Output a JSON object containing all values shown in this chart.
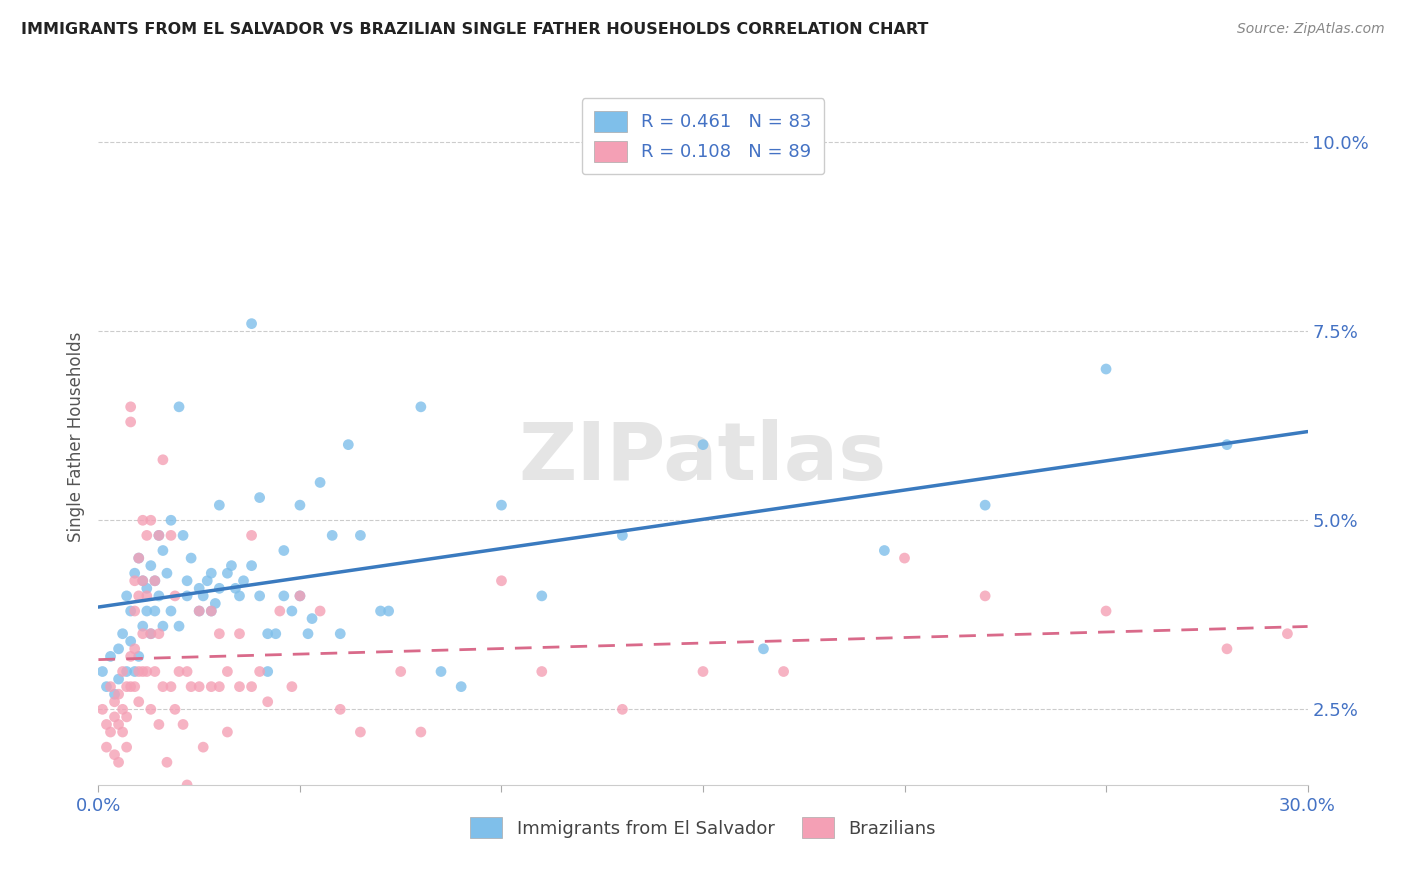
{
  "title": "IMMIGRANTS FROM EL SALVADOR VS BRAZILIAN SINGLE FATHER HOUSEHOLDS CORRELATION CHART",
  "source": "Source: ZipAtlas.com",
  "ylabel": "Single Father Households",
  "x_min": 0.0,
  "x_max": 0.3,
  "y_min": 0.015,
  "y_max": 0.107,
  "x_ticks": [
    0.0,
    0.05,
    0.1,
    0.15,
    0.2,
    0.25,
    0.3
  ],
  "y_ticks": [
    0.025,
    0.05,
    0.075,
    0.1
  ],
  "y_tick_labels": [
    "2.5%",
    "5.0%",
    "7.5%",
    "10.0%"
  ],
  "blue_color": "#7fbfea",
  "pink_color": "#f4a0b5",
  "blue_line_color": "#3a7abf",
  "pink_line_color": "#d96a8a",
  "legend_blue_r": "0.461",
  "legend_blue_n": "83",
  "legend_pink_r": "0.108",
  "legend_pink_n": "89",
  "watermark": "ZIPatlas",
  "legend_label_blue": "Immigrants from El Salvador",
  "legend_label_pink": "Brazilians",
  "blue_scatter": [
    [
      0.001,
      0.03
    ],
    [
      0.002,
      0.028
    ],
    [
      0.003,
      0.032
    ],
    [
      0.004,
      0.027
    ],
    [
      0.005,
      0.033
    ],
    [
      0.005,
      0.029
    ],
    [
      0.006,
      0.035
    ],
    [
      0.007,
      0.04
    ],
    [
      0.007,
      0.03
    ],
    [
      0.008,
      0.038
    ],
    [
      0.008,
      0.034
    ],
    [
      0.009,
      0.043
    ],
    [
      0.009,
      0.03
    ],
    [
      0.01,
      0.045
    ],
    [
      0.01,
      0.032
    ],
    [
      0.011,
      0.042
    ],
    [
      0.011,
      0.036
    ],
    [
      0.012,
      0.041
    ],
    [
      0.012,
      0.038
    ],
    [
      0.013,
      0.044
    ],
    [
      0.013,
      0.035
    ],
    [
      0.014,
      0.042
    ],
    [
      0.014,
      0.038
    ],
    [
      0.015,
      0.048
    ],
    [
      0.015,
      0.04
    ],
    [
      0.016,
      0.046
    ],
    [
      0.016,
      0.036
    ],
    [
      0.017,
      0.043
    ],
    [
      0.018,
      0.05
    ],
    [
      0.018,
      0.038
    ],
    [
      0.02,
      0.065
    ],
    [
      0.02,
      0.036
    ],
    [
      0.021,
      0.048
    ],
    [
      0.022,
      0.042
    ],
    [
      0.022,
      0.04
    ],
    [
      0.023,
      0.045
    ],
    [
      0.025,
      0.041
    ],
    [
      0.025,
      0.038
    ],
    [
      0.026,
      0.04
    ],
    [
      0.027,
      0.042
    ],
    [
      0.028,
      0.043
    ],
    [
      0.028,
      0.038
    ],
    [
      0.029,
      0.039
    ],
    [
      0.03,
      0.052
    ],
    [
      0.03,
      0.041
    ],
    [
      0.032,
      0.043
    ],
    [
      0.033,
      0.044
    ],
    [
      0.034,
      0.041
    ],
    [
      0.035,
      0.04
    ],
    [
      0.036,
      0.042
    ],
    [
      0.038,
      0.076
    ],
    [
      0.038,
      0.044
    ],
    [
      0.04,
      0.053
    ],
    [
      0.04,
      0.04
    ],
    [
      0.042,
      0.035
    ],
    [
      0.042,
      0.03
    ],
    [
      0.044,
      0.035
    ],
    [
      0.046,
      0.046
    ],
    [
      0.046,
      0.04
    ],
    [
      0.048,
      0.038
    ],
    [
      0.05,
      0.052
    ],
    [
      0.05,
      0.04
    ],
    [
      0.052,
      0.035
    ],
    [
      0.053,
      0.037
    ],
    [
      0.055,
      0.055
    ],
    [
      0.058,
      0.048
    ],
    [
      0.06,
      0.035
    ],
    [
      0.062,
      0.06
    ],
    [
      0.065,
      0.048
    ],
    [
      0.07,
      0.038
    ],
    [
      0.072,
      0.038
    ],
    [
      0.08,
      0.065
    ],
    [
      0.085,
      0.03
    ],
    [
      0.09,
      0.028
    ],
    [
      0.1,
      0.052
    ],
    [
      0.11,
      0.04
    ],
    [
      0.13,
      0.048
    ],
    [
      0.15,
      0.06
    ],
    [
      0.165,
      0.033
    ],
    [
      0.195,
      0.046
    ],
    [
      0.22,
      0.052
    ],
    [
      0.25,
      0.07
    ],
    [
      0.28,
      0.06
    ]
  ],
  "pink_scatter": [
    [
      0.001,
      0.025
    ],
    [
      0.002,
      0.023
    ],
    [
      0.002,
      0.02
    ],
    [
      0.003,
      0.028
    ],
    [
      0.003,
      0.022
    ],
    [
      0.004,
      0.026
    ],
    [
      0.004,
      0.024
    ],
    [
      0.004,
      0.019
    ],
    [
      0.005,
      0.027
    ],
    [
      0.005,
      0.023
    ],
    [
      0.005,
      0.018
    ],
    [
      0.006,
      0.03
    ],
    [
      0.006,
      0.025
    ],
    [
      0.006,
      0.022
    ],
    [
      0.007,
      0.028
    ],
    [
      0.007,
      0.024
    ],
    [
      0.007,
      0.02
    ],
    [
      0.008,
      0.065
    ],
    [
      0.008,
      0.063
    ],
    [
      0.008,
      0.032
    ],
    [
      0.008,
      0.028
    ],
    [
      0.009,
      0.042
    ],
    [
      0.009,
      0.038
    ],
    [
      0.009,
      0.033
    ],
    [
      0.009,
      0.028
    ],
    [
      0.01,
      0.045
    ],
    [
      0.01,
      0.04
    ],
    [
      0.01,
      0.03
    ],
    [
      0.01,
      0.026
    ],
    [
      0.011,
      0.05
    ],
    [
      0.011,
      0.042
    ],
    [
      0.011,
      0.035
    ],
    [
      0.011,
      0.03
    ],
    [
      0.012,
      0.048
    ],
    [
      0.012,
      0.04
    ],
    [
      0.012,
      0.03
    ],
    [
      0.013,
      0.05
    ],
    [
      0.013,
      0.035
    ],
    [
      0.013,
      0.025
    ],
    [
      0.014,
      0.042
    ],
    [
      0.014,
      0.03
    ],
    [
      0.015,
      0.048
    ],
    [
      0.015,
      0.035
    ],
    [
      0.015,
      0.023
    ],
    [
      0.016,
      0.058
    ],
    [
      0.016,
      0.028
    ],
    [
      0.017,
      0.018
    ],
    [
      0.018,
      0.048
    ],
    [
      0.018,
      0.028
    ],
    [
      0.019,
      0.04
    ],
    [
      0.019,
      0.025
    ],
    [
      0.02,
      0.03
    ],
    [
      0.021,
      0.023
    ],
    [
      0.022,
      0.03
    ],
    [
      0.022,
      0.015
    ],
    [
      0.023,
      0.028
    ],
    [
      0.025,
      0.038
    ],
    [
      0.025,
      0.028
    ],
    [
      0.026,
      0.02
    ],
    [
      0.028,
      0.038
    ],
    [
      0.028,
      0.028
    ],
    [
      0.03,
      0.035
    ],
    [
      0.03,
      0.028
    ],
    [
      0.032,
      0.03
    ],
    [
      0.032,
      0.022
    ],
    [
      0.035,
      0.035
    ],
    [
      0.035,
      0.028
    ],
    [
      0.038,
      0.048
    ],
    [
      0.038,
      0.028
    ],
    [
      0.04,
      0.03
    ],
    [
      0.042,
      0.026
    ],
    [
      0.045,
      0.038
    ],
    [
      0.048,
      0.028
    ],
    [
      0.05,
      0.04
    ],
    [
      0.055,
      0.038
    ],
    [
      0.06,
      0.025
    ],
    [
      0.065,
      0.022
    ],
    [
      0.075,
      0.03
    ],
    [
      0.08,
      0.022
    ],
    [
      0.1,
      0.042
    ],
    [
      0.11,
      0.03
    ],
    [
      0.13,
      0.025
    ],
    [
      0.15,
      0.03
    ],
    [
      0.17,
      0.03
    ],
    [
      0.2,
      0.045
    ],
    [
      0.22,
      0.04
    ],
    [
      0.25,
      0.038
    ],
    [
      0.28,
      0.033
    ],
    [
      0.295,
      0.035
    ]
  ]
}
